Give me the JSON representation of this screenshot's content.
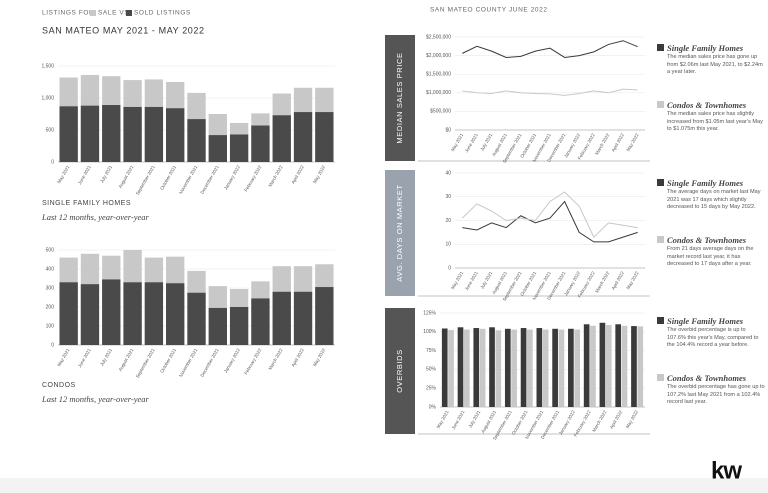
{
  "header": {
    "prefix": "LISTINGS FOR",
    "sale_label": "SALE VS",
    "sold_label": "SOLD LISTINGS",
    "title": "SAN MATEO MAY 2021 - MAY 2022",
    "right_title": "SAN MATEO COUNTY JUNE 2022"
  },
  "captions": [
    {
      "title": "SINGLE FAMILY HOMES",
      "subtitle": "Last 12 months, year-over-year"
    },
    {
      "title": "CONDOS",
      "subtitle": "Last 12 months, year-over-year"
    }
  ],
  "logo": "kw",
  "chart_data": [
    {
      "type": "bar",
      "bar_mode": "overlap",
      "categories": [
        "May 2021",
        "June 2021",
        "July 2021",
        "August 2021",
        "September 2021",
        "October 2021",
        "November 2021",
        "December 2021",
        "January 2022",
        "February 2022",
        "March 2022",
        "April 2022",
        "May 2022"
      ],
      "series": [
        {
          "color": "#c8c8c8",
          "values": [
            1320,
            1360,
            1340,
            1280,
            1290,
            1250,
            1080,
            750,
            610,
            760,
            1070,
            1160,
            1160
          ]
        },
        {
          "color": "#4a4a4a",
          "values": [
            870,
            880,
            890,
            860,
            860,
            840,
            670,
            420,
            430,
            570,
            730,
            780,
            780
          ]
        }
      ],
      "ylim": [
        0,
        1500
      ],
      "yticks": [
        0,
        500,
        {
          "value": 1000,
          "label": "1,000"
        },
        {
          "value": 1500,
          "label": "1,500"
        }
      ]
    },
    {
      "type": "bar",
      "bar_mode": "overlap",
      "categories": [
        "May 2021",
        "June 2021",
        "July 2021",
        "August 2021",
        "September 2021",
        "October 2021",
        "November 2021",
        "December 2021",
        "January 2022",
        "February 2022",
        "March 2022",
        "April 2022",
        "May 2022"
      ],
      "series": [
        {
          "color": "#c8c8c8",
          "values": [
            460,
            480,
            470,
            500,
            460,
            465,
            390,
            310,
            295,
            335,
            415,
            415,
            425
          ]
        },
        {
          "color": "#4a4a4a",
          "values": [
            330,
            320,
            345,
            330,
            330,
            325,
            275,
            195,
            200,
            245,
            280,
            280,
            305
          ]
        }
      ],
      "ylim": [
        0,
        500
      ],
      "yticks": [
        0,
        100,
        200,
        300,
        400,
        500
      ]
    },
    {
      "type": "line",
      "label": "MEDIAN SALES PRICE",
      "label_color": "#555555",
      "categories": [
        "May 2021",
        "June 2021",
        "July 2021",
        "August 2021",
        "September 2021",
        "October 2021",
        "November 2021",
        "December 2021",
        "January 2022",
        "February 2022",
        "March 2022",
        "April 2022",
        "May 2022"
      ],
      "series": [
        {
          "name": "Single Family Homes",
          "color": "#3a3a3a",
          "values": [
            2060000,
            2250000,
            2120000,
            1950000,
            1980000,
            2120000,
            2200000,
            1950000,
            2000000,
            2100000,
            2300000,
            2400000,
            2240000
          ],
          "description": "The median sales price has gone up from $2.06m last May 2021, to $2.24m a year later."
        },
        {
          "name": "Condos & Townhomes",
          "color": "#c8c8c8",
          "values": [
            1050000,
            1000000,
            980000,
            1050000,
            1000000,
            980000,
            970000,
            930000,
            980000,
            1050000,
            1000000,
            1100000,
            1075000
          ],
          "description": "The median sales price has slightly increased from $1.05m last year's May to $1.075m this year."
        }
      ],
      "ylim": [
        0,
        2500000
      ],
      "yticks": [
        {
          "value": 0,
          "label": "$0"
        },
        {
          "value": 500000,
          "label": "$500,000"
        },
        {
          "value": 1000000,
          "label": "$1,000,000"
        },
        {
          "value": 1500000,
          "label": "$1,500,000"
        },
        {
          "value": 2000000,
          "label": "$2,000,000"
        },
        {
          "value": 2500000,
          "label": "$2,500,000"
        }
      ]
    },
    {
      "type": "line",
      "label": "AVG. DAYS ON MARKET",
      "label_color": "#9aa3ad",
      "categories": [
        "May 2021",
        "June 2021",
        "July 2021",
        "August 2021",
        "September 2021",
        "October 2021",
        "November 2021",
        "December 2021",
        "January 2022",
        "February 2022",
        "March 2022",
        "April 2022",
        "May 2022"
      ],
      "series": [
        {
          "name": "Single Family Homes",
          "color": "#3a3a3a",
          "values": [
            17,
            16,
            19,
            17,
            22,
            19,
            21,
            28,
            15,
            11,
            11,
            13,
            15
          ],
          "description": "The average days on market last May 2021 was 17 days which slightly decreased to 15 days by May 2022."
        },
        {
          "name": "Condos & Townhomes",
          "color": "#c8c8c8",
          "values": [
            21,
            27,
            24,
            20,
            21,
            20,
            28,
            32,
            26,
            13,
            19,
            18,
            17
          ],
          "description": "From 21 days average days on the market record last year, it has decreased to 17 days after a year."
        }
      ],
      "ylim": [
        0,
        40
      ],
      "yticks": [
        0,
        10,
        20,
        30,
        40
      ]
    },
    {
      "type": "bar",
      "bar_mode": "grouped",
      "label": "OVERBIDS",
      "label_color": "#555555",
      "categories": [
        "May 2021",
        "June 2021",
        "July 2021",
        "August 2021",
        "September 2021",
        "October 2021",
        "November 2021",
        "December 2021",
        "January 2022",
        "February 2022",
        "March 2022",
        "April 2022",
        "May 2022"
      ],
      "series": [
        {
          "name": "Single Family Homes",
          "color": "#3a3a3a",
          "values": [
            104.4,
            106,
            105,
            106,
            104,
            105,
            105,
            104,
            104,
            110,
            112,
            110,
            107.6
          ],
          "description": "The overbid percentage is up to 107.6% this year's May, compared to the 104.4% record a year before."
        },
        {
          "name": "Condos & Townhomes",
          "color": "#c8c8c8",
          "values": [
            102.4,
            103,
            104,
            102,
            103,
            103,
            103,
            103,
            103,
            108,
            109,
            108,
            107.2
          ],
          "description": "The overbid percentage has gone up to 107.2% last May 2021 from a 102.4% record last year."
        }
      ],
      "ylim": [
        0,
        125
      ],
      "yticks": [
        {
          "value": 0,
          "label": "0%"
        },
        {
          "value": 25,
          "label": "25%"
        },
        {
          "value": 50,
          "label": "50%"
        },
        {
          "value": 75,
          "label": "75%"
        },
        {
          "value": 100,
          "label": "100%"
        },
        {
          "value": 125,
          "label": "125%"
        }
      ]
    }
  ]
}
